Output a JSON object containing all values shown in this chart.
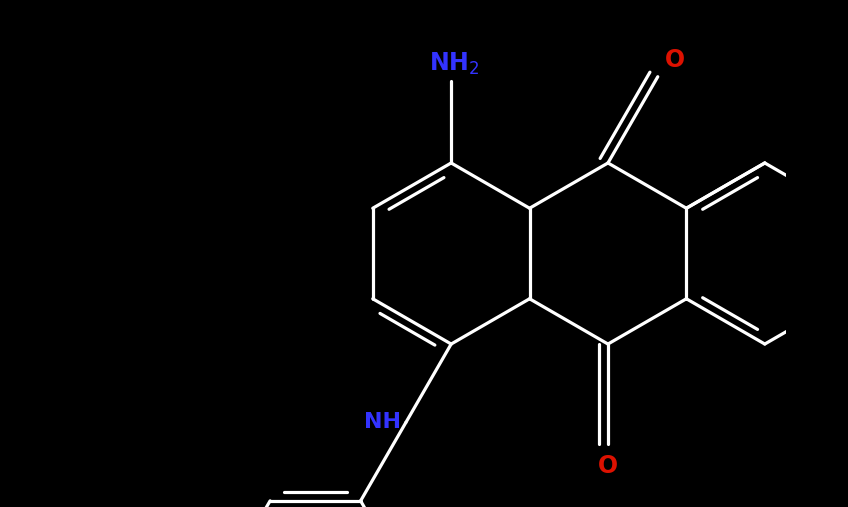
{
  "bg_color": "#000000",
  "bond_color": "#ffffff",
  "nh2_color": "#3333ff",
  "o_color": "#dd1100",
  "nh_color": "#3333ff",
  "lw": 2.3,
  "dbl_off": 0.1,
  "figsize": [
    8.48,
    5.07
  ],
  "dpi": 100,
  "xlim": [
    -4.8,
    4.2
  ],
  "ylim": [
    -2.8,
    2.8
  ],
  "nh2_fontsize": 17,
  "o_fontsize": 17,
  "nh_fontsize": 16
}
